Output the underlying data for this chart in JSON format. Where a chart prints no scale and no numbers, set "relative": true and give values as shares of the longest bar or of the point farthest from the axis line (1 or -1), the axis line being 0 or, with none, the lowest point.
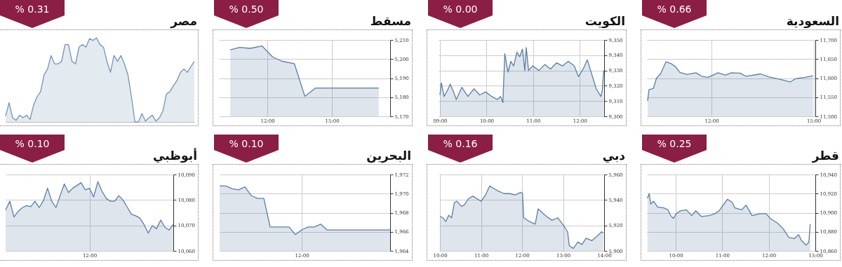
{
  "chart_data": [
    {
      "type": "area",
      "title": "السعودية",
      "subtitle": "% 0.66",
      "grid": true,
      "x": [
        10.12,
        10.16,
        10.29,
        10.38,
        10.5,
        10.66,
        10.81,
        10.94,
        11.07,
        11.28,
        11.54,
        11.71,
        11.89,
        12.19,
        12.41,
        12.58,
        12.84,
        13.01,
        13.44,
        13.7,
        14.05,
        14.31,
        14.48,
        14.74,
        14.98
      ],
      "series": [
        {
          "color": "#5a7ea6",
          "values": [
            11540,
            11570,
            11573,
            11600,
            11611,
            11643,
            11638,
            11630,
            11615,
            11610,
            11614,
            11605,
            11602,
            11614,
            11608,
            11614,
            11613,
            11605,
            11611,
            11603,
            11596,
            11590,
            11599,
            11602,
            11606
          ]
        }
      ],
      "xlim": [
        10.1,
        15.05
      ],
      "xticks": [
        {
          "value": 12,
          "label": "12:00"
        },
        {
          "value": 15,
          "label": "15:00"
        }
      ],
      "ylim": [
        11500,
        11700
      ],
      "yticks": [
        {
          "value": 11500,
          "label": "11,500"
        },
        {
          "value": 11550,
          "label": "11,550"
        },
        {
          "value": 11600,
          "label": "11,600"
        },
        {
          "value": 11650,
          "label": "11,650"
        },
        {
          "value": 11700,
          "label": "11,700"
        }
      ]
    },
    {
      "type": "area",
      "title": "الكويت",
      "subtitle": "% 0.00",
      "grid": true,
      "x": [
        9,
        9.03,
        9.09,
        9.16,
        9.22,
        9.28,
        9.35,
        9.47,
        9.6,
        9.73,
        9.85,
        9.98,
        10.11,
        10.23,
        10.3,
        10.35,
        10.39,
        10.46,
        10.52,
        10.58,
        10.65,
        10.71,
        10.77,
        10.82,
        10.85,
        10.9,
        10.99,
        11.12,
        11.25,
        11.37,
        11.5,
        11.63,
        11.75,
        11.88,
        11.97,
        12.07,
        12.16,
        12.26,
        12.35,
        12.45,
        12.48,
        12.51
      ],
      "series": [
        {
          "color": "#5a7ea6",
          "values": [
            9314,
            9322,
            9313,
            9317,
            9321,
            9317,
            9311,
            9319,
            9313,
            9318,
            9314,
            9316,
            9313,
            9311,
            9313,
            9309,
            9341,
            9329,
            9336,
            9333,
            9342,
            9339,
            9344,
            9330,
            9345,
            9330,
            9333,
            9330,
            9334,
            9331,
            9335,
            9333,
            9336,
            9333,
            9326,
            9331,
            9337,
            9327,
            9318,
            9313,
            9317,
            9330
          ]
        }
      ],
      "xlim": [
        8.97,
        12.52
      ],
      "xticks": [
        {
          "value": 9,
          "label": "09:00"
        },
        {
          "value": 10,
          "label": "10:00"
        },
        {
          "value": 11,
          "label": "11:00"
        },
        {
          "value": 12,
          "label": "12:00"
        }
      ],
      "ylim": [
        9300,
        9350
      ],
      "yticks": [
        {
          "value": 9300,
          "label": "9,300"
        },
        {
          "value": 9310,
          "label": "9,310"
        },
        {
          "value": 9320,
          "label": "9,320"
        },
        {
          "value": 9330,
          "label": "9,330"
        },
        {
          "value": 9340,
          "label": "9,340"
        },
        {
          "value": 9350,
          "label": "9,350"
        }
      ]
    },
    {
      "type": "area",
      "title": "مسقط",
      "subtitle": "% 0.50",
      "grid": true,
      "x": [
        10.27,
        10.7,
        11.19,
        11.75,
        12.24,
        12.66,
        13.25,
        13.74,
        14.23,
        17.18
      ],
      "series": [
        {
          "color": "#5a7ea6",
          "values": [
            5204.8,
            5206.1,
            5205.6,
            5206.8,
            5201.1,
            5198.9,
            5197.6,
            5180.5,
            5184.8,
            5184.8
          ]
        }
      ],
      "xlim": [
        9.74,
        17.71
      ],
      "xticks": [
        {
          "value": 12,
          "label": "12:00"
        },
        {
          "value": 15,
          "label": "15:00"
        }
      ],
      "ylim": [
        5170,
        5210
      ],
      "yticks": [
        {
          "value": 5170,
          "label": "5,170"
        },
        {
          "value": 5180,
          "label": "5,180"
        },
        {
          "value": 5190,
          "label": "5,190"
        },
        {
          "value": 5200,
          "label": "5,200"
        },
        {
          "value": 5210,
          "label": "5,210"
        }
      ]
    },
    {
      "type": "area",
      "title": "مصر",
      "subtitle": "% 0.31",
      "relative": true,
      "categories": [
        null,
        null,
        null,
        null,
        null,
        null,
        null,
        null,
        null,
        null,
        null,
        null,
        null,
        null,
        null,
        null,
        null,
        null,
        null,
        null,
        null,
        null,
        null,
        null,
        null,
        null,
        null,
        null,
        null,
        null,
        null,
        null,
        null,
        null,
        null,
        null,
        null,
        null,
        null,
        null,
        null,
        null,
        null,
        null,
        null,
        null,
        null,
        null,
        null,
        null,
        null,
        null,
        null,
        null,
        null
      ],
      "series": [
        {
          "color": "#7594b5",
          "values": [
            0.07,
            0.23,
            0.05,
            0.02,
            0.08,
            0.05,
            0.08,
            0.03,
            0.2,
            0.3,
            0.36,
            0.56,
            0.63,
            0.79,
            0.69,
            0.69,
            0.72,
            0.92,
            0.92,
            0.72,
            0.69,
            0.89,
            0.92,
            0.89,
            0.99,
            0.97,
            1,
            0.92,
            0.89,
            0.72,
            0.59,
            0.79,
            0.72,
            0.79,
            0.69,
            0.56,
            0.3,
            0,
            0,
            0.1,
            0.01,
            0.05,
            0.08,
            0.01,
            0.05,
            0.13,
            0.33,
            0.36,
            0.43,
            0.49,
            0.59,
            0.63,
            0.59,
            0.66,
            0.72
          ]
        }
      ]
    },
    {
      "type": "area",
      "title": "قطر",
      "subtitle": "% 0.25",
      "grid": true,
      "x": [
        9.39,
        9.43,
        9.46,
        9.52,
        9.61,
        9.74,
        9.83,
        9.89,
        9.95,
        10.01,
        10.1,
        10.23,
        10.34,
        10.43,
        10.55,
        10.72,
        10.84,
        10.93,
        11.02,
        11.11,
        11.21,
        11.27,
        11.42,
        11.51,
        11.64,
        11.82,
        11.94,
        12.03,
        12.19,
        12.31,
        12.43,
        12.55,
        12.64,
        12.7,
        12.8,
        12.86,
        12.89
      ],
      "series": [
        {
          "color": "#5a7ea6",
          "values": [
            10915,
            10920,
            10909,
            10912,
            10906,
            10905,
            10903,
            10897,
            10894,
            10899,
            10902,
            10903,
            10897,
            10902,
            10896,
            10897,
            10899,
            10902,
            10908,
            10914,
            10911,
            10905,
            10903,
            10908,
            10897,
            10899,
            10899,
            10894,
            10889,
            10883,
            10874,
            10873,
            10877,
            10871,
            10866,
            10869,
            10888
          ]
        }
      ],
      "xlim": [
        9.38,
        13.0
      ],
      "xticks": [
        {
          "value": 10,
          "label": "10:00"
        },
        {
          "value": 11,
          "label": "11:00"
        },
        {
          "value": 12,
          "label": "12:00"
        },
        {
          "value": 13,
          "label": "13:00"
        }
      ],
      "ylim": [
        10860,
        10940
      ],
      "yticks": [
        {
          "value": 10860,
          "label": "10,860"
        },
        {
          "value": 10880,
          "label": "10,880"
        },
        {
          "value": 10900,
          "label": "10,900"
        },
        {
          "value": 10920,
          "label": "10,920"
        },
        {
          "value": 10940,
          "label": "10,940"
        }
      ]
    },
    {
      "type": "area",
      "title": "دبي",
      "subtitle": "% 0.16",
      "grid": true,
      "x": [
        10,
        10.07,
        10.14,
        10.21,
        10.28,
        10.35,
        10.41,
        10.52,
        10.59,
        10.69,
        10.8,
        10.9,
        11,
        11.11,
        11.21,
        11.31,
        11.42,
        11.56,
        11.7,
        11.83,
        11.97,
        12.01,
        12.04,
        12.18,
        12.32,
        12.39,
        12.49,
        12.6,
        12.73,
        12.87,
        13.01,
        13.11,
        13.15,
        13.25,
        13.36,
        13.46,
        13.56,
        13.7,
        13.84,
        13.94,
        13.98
      ],
      "series": [
        {
          "color": "#5a7ea6",
          "values": [
            5927,
            5926,
            5923,
            5928,
            5926,
            5938,
            5939,
            5935,
            5936,
            5941,
            5943,
            5941,
            5939,
            5944,
            5951,
            5949,
            5947,
            5945,
            5945,
            5944,
            5946,
            5945,
            5926,
            5923,
            5921,
            5933,
            5930,
            5927,
            5924,
            5926,
            5920,
            5915,
            5904,
            5902,
            5907,
            5905,
            5910,
            5908,
            5912,
            5915,
            5914
          ]
        }
      ],
      "xlim": [
        9.98,
        14.0
      ],
      "xticks": [
        {
          "value": 10,
          "label": "10:00"
        },
        {
          "value": 11,
          "label": "11:00"
        },
        {
          "value": 12,
          "label": "12:00"
        },
        {
          "value": 13,
          "label": "13:00"
        },
        {
          "value": 14,
          "label": "14:00"
        }
      ],
      "ylim": [
        5900,
        5960
      ],
      "yticks": [
        {
          "value": 5900,
          "label": "5,900"
        },
        {
          "value": 5920,
          "label": "5,920"
        },
        {
          "value": 5940,
          "label": "5,940"
        },
        {
          "value": 5960,
          "label": "5,960"
        }
      ]
    },
    {
      "type": "area",
      "title": "البحرين",
      "subtitle": "% 0.10",
      "grid": true,
      "categories": [
        null,
        null,
        null,
        null,
        null,
        null,
        null,
        null,
        null,
        null,
        null,
        null,
        null,
        "12:00",
        null,
        null,
        null,
        null,
        null,
        null,
        null,
        null,
        null,
        null,
        null,
        null,
        null,
        null
      ],
      "series": [
        {
          "color": "#5a7ea6",
          "values": [
            1970.8,
            1970.8,
            1970.5,
            1970.4,
            1970.7,
            1969.8,
            1969.5,
            1969.5,
            1966.5,
            1966.5,
            1966.5,
            1966.5,
            1965.7,
            1966.2,
            1966.5,
            1966.5,
            1966.8,
            1966.2,
            1966.2,
            1966.2,
            1966.2,
            1966.2,
            1966.2,
            1966.2,
            1966.2,
            1966.2,
            1966.2,
            1966.2
          ]
        }
      ],
      "ylim": [
        1964,
        1972
      ],
      "yticks": [
        {
          "value": 1964,
          "label": "1,964"
        },
        {
          "value": 1966,
          "label": "1,966"
        },
        {
          "value": 1968,
          "label": "1,968"
        },
        {
          "value": 1970,
          "label": "1,970"
        },
        {
          "value": 1972,
          "label": "1,972"
        }
      ]
    },
    {
      "type": "area",
      "title": "أبوظبي",
      "subtitle": "% 0.10",
      "grid": true,
      "categories": [
        null,
        null,
        null,
        null,
        null,
        null,
        null,
        null,
        null,
        null,
        null,
        null,
        null,
        null,
        null,
        null,
        null,
        null,
        null,
        null,
        "12:00",
        null,
        null,
        null,
        null,
        null,
        null,
        null,
        null,
        null,
        null,
        null,
        null,
        null,
        null,
        null,
        null,
        null,
        null,
        null,
        null
      ],
      "series": [
        {
          "color": "#5a7ea6",
          "values": [
            10076.1,
            10079.5,
            10073.3,
            10075.5,
            10077.0,
            10077.8,
            10077.4,
            10079.5,
            10077.0,
            10079.7,
            10084.6,
            10079.5,
            10077.0,
            10081.7,
            10086.3,
            10082.9,
            10084.6,
            10085.7,
            10086.8,
            10084.0,
            10084.6,
            10081.2,
            10087.2,
            10083.4,
            10080.6,
            10079.5,
            10079.5,
            10081.7,
            10080.0,
            10077.2,
            10074.4,
            10073.8,
            10072.9,
            10070.4,
            10067.0,
            10069.9,
            10068.7,
            10072.1,
            10069.3,
            10068.2,
            10070.4
          ]
        }
      ],
      "ylim": [
        10060,
        10090
      ],
      "yticks": [
        {
          "value": 10060,
          "label": "10,060"
        },
        {
          "value": 10070,
          "label": "10,070"
        },
        {
          "value": 10080,
          "label": "10,080"
        },
        {
          "value": 10090,
          "label": "10,090"
        }
      ]
    }
  ]
}
